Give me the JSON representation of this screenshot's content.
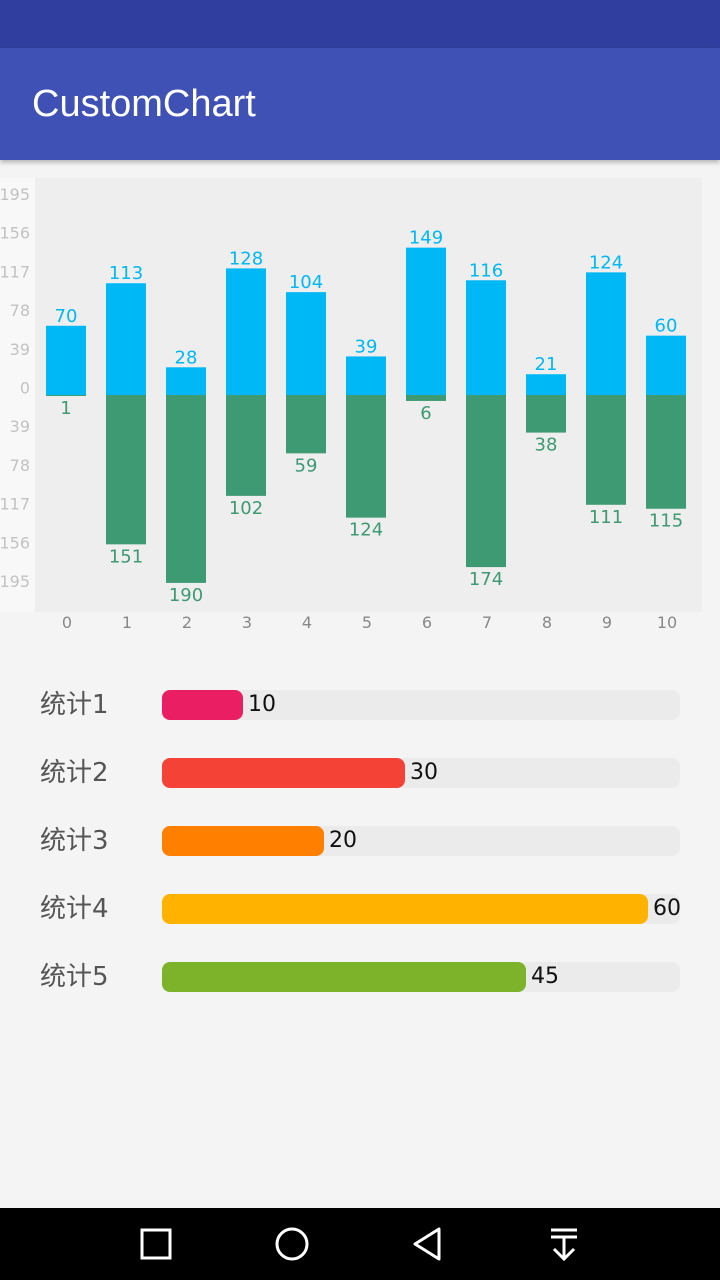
{
  "app": {
    "title": "CustomChart"
  },
  "colors": {
    "status_bar": "#303f9f",
    "app_bar": "#3f51b5",
    "positive_bar": "#00b8f5",
    "negative_bar": "#3d9a73",
    "nav_bar": "#000000"
  },
  "chart_data": [
    {
      "type": "bar",
      "categories": [
        "0",
        "1",
        "2",
        "3",
        "4",
        "5",
        "6",
        "7",
        "8",
        "9",
        "10"
      ],
      "series": [
        {
          "values": [
            70,
            113,
            28,
            128,
            104,
            39,
            149,
            116,
            21,
            124,
            60
          ]
        },
        {
          "values": [
            -1,
            -151,
            -190,
            -102,
            -59,
            -124,
            -6,
            -174,
            -38,
            -111,
            -115
          ]
        }
      ],
      "y_ticks": [
        195,
        156,
        117,
        78,
        39,
        0,
        39,
        78,
        117,
        156,
        195
      ],
      "ylim": [
        -195,
        195
      ],
      "grid": false,
      "legend": "none",
      "title": "",
      "xlabel": "",
      "ylabel": ""
    },
    {
      "type": "bar",
      "orientation": "horizontal",
      "categories": [
        "统计1",
        "统计2",
        "统计3",
        "统计4",
        "统计5"
      ],
      "values": [
        10,
        30,
        20,
        60,
        45
      ],
      "colors": [
        "#e91e63",
        "#f44336",
        "#ff7f00",
        "#ffb300",
        "#7cb32a"
      ],
      "xlim": [
        0,
        64
      ]
    }
  ],
  "nav": {
    "recents_icon": "square-icon",
    "home_icon": "circle-icon",
    "back_icon": "triangle-back-icon",
    "notifications_icon": "pull-down-icon"
  }
}
